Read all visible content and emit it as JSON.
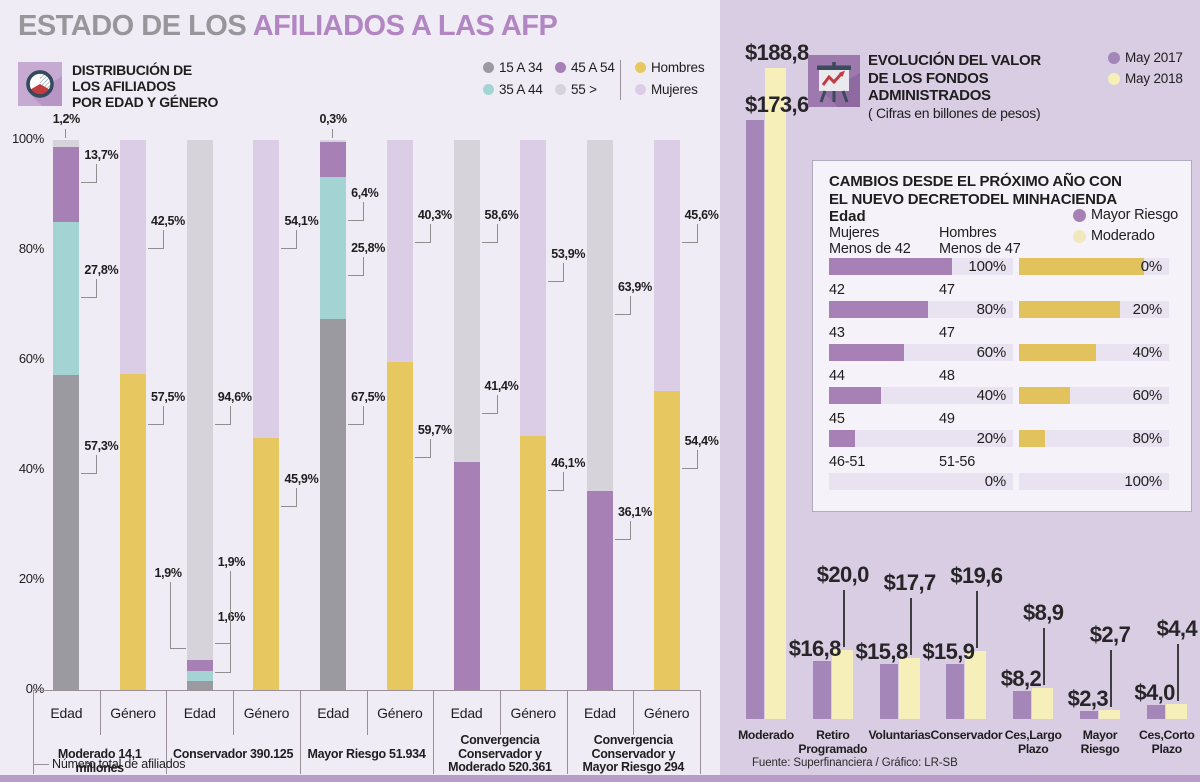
{
  "title": {
    "prefix": "ESTADO DE LOS ",
    "highlight": "AFILIADOS A LAS AFP"
  },
  "left_panel": {
    "header_lines": [
      "DISTRIBUCIÓN DE",
      "LOS AFILIADOS",
      "POR EDAD Y GÉNERO"
    ],
    "legend": {
      "age": [
        {
          "label": "15 A 34",
          "color": "#9b9aa0"
        },
        {
          "label": "35 A 44",
          "color": "#a3d4d3"
        },
        {
          "label": "45 A 54",
          "color": "#a780b5"
        },
        {
          "label": "55 >",
          "color": "#d7d3db"
        }
      ],
      "gender": [
        {
          "label": "Hombres",
          "color": "#e7c75f"
        },
        {
          "label": "Mujeres",
          "color": "#dccde7"
        }
      ]
    },
    "y_axis": [
      "100%",
      "80%",
      "60%",
      "40%",
      "20%",
      "0%"
    ],
    "col_labels": [
      "Edad",
      "Género"
    ],
    "x_note": "Número total de afiliados"
  },
  "right_panel": {
    "header_lines": [
      "EVOLUCIÓN DEL VALOR",
      "DE LOS FONDOS",
      "ADMINISTRADOS"
    ],
    "subtitle": "( Cifras en billones de pesos)",
    "legend": [
      {
        "label": "May 2017",
        "color": "#a586b9"
      },
      {
        "label": "May 2018",
        "color": "#f6efba"
      }
    ],
    "source": "Fuente: Superfinanciera / Gráfico: LR-SB",
    "inset": {
      "title_lines": [
        "CAMBIOS DESDE EL PRÓXIMO AÑO CON",
        "EL NUEVO DECRETODEL MINHACIENDA"
      ],
      "age_label": "Edad",
      "col_headers": [
        {
          "line1": "Mujeres",
          "line2": "Menos de 42"
        },
        {
          "line1": "Hombres",
          "line2": "Menos de 47"
        }
      ],
      "legend": [
        {
          "label": "Mayor Riesgo",
          "color": "#a780b5"
        },
        {
          "label": "Moderado",
          "color": "#f1e9bd"
        }
      ]
    }
  },
  "chart_data": [
    {
      "type": "bar",
      "subtype": "stacked-100",
      "title": "Distribución de los afiliados por edad y género",
      "unit": "%",
      "ylim": [
        0,
        100
      ],
      "colors": {
        "15 A 34": "#9b9aa0",
        "35 A 44": "#a3d4d3",
        "45 A 54": "#a780b5",
        "55 >": "#d7d3db",
        "Hombres": "#e7c75f",
        "Mujeres": "#dccde7"
      },
      "groups": [
        {
          "name": "Moderado 14,1 millones",
          "name_lines": [
            "Moderado 14,1 millones"
          ],
          "bars": [
            {
              "label": "Edad",
              "segments": [
                {
                  "cat": "15 A 34",
                  "value": 57.3,
                  "text": "57,3%",
                  "side": "right",
                  "label_y": 44
                },
                {
                  "cat": "35 A 44",
                  "value": 27.8,
                  "text": "27,8%",
                  "side": "right",
                  "label_y": 76
                },
                {
                  "cat": "45 A 54",
                  "value": 13.7,
                  "text": "13,7%",
                  "side": "right",
                  "label_y": 97
                },
                {
                  "cat": "55 >",
                  "value": 1.2,
                  "text": "1,2%",
                  "side": "top"
                }
              ]
            },
            {
              "label": "Género",
              "segments": [
                {
                  "cat": "Hombres",
                  "value": 57.5,
                  "text": "57,5%",
                  "side": "right",
                  "label_y": 53
                },
                {
                  "cat": "Mujeres",
                  "value": 42.5,
                  "text": "42,5%",
                  "side": "right",
                  "label_y": 85
                }
              ]
            }
          ]
        },
        {
          "name": "Conservador 390.125",
          "name_lines": [
            "Conservador 390.125"
          ],
          "bars": [
            {
              "label": "Edad",
              "segments": [
                {
                  "cat": "15 A 34",
                  "value": 1.6,
                  "text": "1,6%",
                  "side": "right",
                  "label_y": 13,
                  "elbow": 46
                },
                {
                  "cat": "35 A 44",
                  "value": 1.9,
                  "text": "1,9%",
                  "side": "left",
                  "label_y": 21,
                  "elbow": 66
                },
                {
                  "cat": "45 A 54",
                  "value": 1.9,
                  "text": "1,9%",
                  "side": "right",
                  "label_y": 23,
                  "elbow": 72
                },
                {
                  "cat": "55 >",
                  "value": 94.6,
                  "text": "94,6%",
                  "side": "right",
                  "label_y": 53
                }
              ]
            },
            {
              "label": "Género",
              "segments": [
                {
                  "cat": "Hombres",
                  "value": 45.9,
                  "text": "45,9%",
                  "side": "right",
                  "label_y": 38
                },
                {
                  "cat": "Mujeres",
                  "value": 54.1,
                  "text": "54,1%",
                  "side": "right",
                  "label_y": 85
                }
              ]
            }
          ]
        },
        {
          "name": "Mayor Riesgo 51.934",
          "name_lines": [
            "Mayor Riesgo 51.934"
          ],
          "bars": [
            {
              "label": "Edad",
              "segments": [
                {
                  "cat": "15 A 34",
                  "value": 67.5,
                  "text": "67,5%",
                  "side": "right",
                  "label_y": 53
                },
                {
                  "cat": "35 A 44",
                  "value": 25.8,
                  "text": "25,8%",
                  "side": "right",
                  "label_y": 80
                },
                {
                  "cat": "45 A 54",
                  "value": 6.4,
                  "text": "6,4%",
                  "side": "right",
                  "label_y": 90
                },
                {
                  "cat": "55 >",
                  "value": 0.3,
                  "text": "0,3%",
                  "side": "top"
                }
              ]
            },
            {
              "label": "Género",
              "segments": [
                {
                  "cat": "Hombres",
                  "value": 59.7,
                  "text": "59,7%",
                  "side": "right",
                  "label_y": 47
                },
                {
                  "cat": "Mujeres",
                  "value": 40.3,
                  "text": "40,3%",
                  "side": "right",
                  "label_y": 86
                }
              ]
            }
          ]
        },
        {
          "name": "Convergencia Conservador y Moderado 520.361",
          "name_lines": [
            "Convergencia",
            "Conservador y",
            "Moderado 520.361"
          ],
          "bars": [
            {
              "label": "Edad",
              "segments": [
                {
                  "cat": "45 A 54",
                  "value": 41.4,
                  "text": "41,4%",
                  "side": "right",
                  "label_y": 55
                },
                {
                  "cat": "55 >",
                  "value": 58.6,
                  "text": "58,6%",
                  "side": "right",
                  "label_y": 86
                }
              ]
            },
            {
              "label": "Género",
              "segments": [
                {
                  "cat": "Hombres",
                  "value": 46.1,
                  "text": "46,1%",
                  "side": "right",
                  "label_y": 41
                },
                {
                  "cat": "Mujeres",
                  "value": 53.9,
                  "text": "53,9%",
                  "side": "right",
                  "label_y": 79
                }
              ]
            }
          ]
        },
        {
          "name": "Convergencia Conservador y Mayor Riesgo 294",
          "name_lines": [
            "Convergencia",
            "Conservador y",
            "Mayor Riesgo 294"
          ],
          "bars": [
            {
              "label": "Edad",
              "segments": [
                {
                  "cat": "45 A 54",
                  "value": 36.1,
                  "text": "36,1%",
                  "side": "right",
                  "label_y": 32
                },
                {
                  "cat": "55 >",
                  "value": 63.9,
                  "text": "63,9%",
                  "side": "right",
                  "label_y": 73
                }
              ]
            },
            {
              "label": "Género",
              "segments": [
                {
                  "cat": "Hombres",
                  "value": 54.4,
                  "text": "54,4%",
                  "side": "right",
                  "label_y": 45
                },
                {
                  "cat": "Mujeres",
                  "value": 45.6,
                  "text": "45,6%",
                  "side": "right",
                  "label_y": 86
                }
              ]
            }
          ]
        }
      ]
    },
    {
      "type": "bar",
      "subtype": "grouped",
      "title": "Evolución del valor de los fondos administrados",
      "unit": "billones de pesos",
      "categories": [
        "Moderado",
        "Retiro Programado",
        "Voluntarias",
        "Conservador",
        "Ces,Largo Plazo",
        "Mayor Riesgo",
        "Ces,Corto Plazo"
      ],
      "categories_lines": [
        [
          "Moderado"
        ],
        [
          "Retiro",
          "Programado"
        ],
        [
          "Voluntarias"
        ],
        [
          "Conservador"
        ],
        [
          "Ces,Largo",
          "Plazo"
        ],
        [
          "Mayor",
          "Riesgo"
        ],
        [
          "Ces,Corto",
          "Plazo"
        ]
      ],
      "series": [
        {
          "name": "May 2017",
          "color": "#a586b9",
          "values": [
            173.6,
            16.8,
            15.8,
            15.9,
            8.2,
            2.3,
            4.0
          ],
          "labels": [
            "$173,6",
            "$16,8",
            "$15,8",
            "$15,9",
            "$8,2",
            "$2,3",
            "$4,0"
          ]
        },
        {
          "name": "May 2018",
          "color": "#f6efba",
          "values": [
            188.8,
            20.0,
            17.7,
            19.6,
            8.9,
            2.7,
            4.4
          ],
          "labels": [
            "$188,8",
            "$20,0",
            "$17,7",
            "$19,6",
            "$8,9",
            "$2,7",
            "$4,4"
          ]
        }
      ]
    },
    {
      "type": "bar",
      "subtype": "paired-horizontal",
      "title": "Cambios desde el próximo año con el nuevo decreto del Minhacienda",
      "bar_colors": {
        "mayor_riesgo": "#a780b5",
        "moderado": "#e2c25d",
        "track": "#e9e2f0"
      },
      "rows": [
        {
          "mujeres": "Menos de 42",
          "hombres": "Menos de 47",
          "mayor_riesgo": "100%",
          "moderado": "0%",
          "mr_fill": 67,
          "mod_fill": 83
        },
        {
          "mujeres": "42",
          "hombres": "47",
          "mayor_riesgo": "80%",
          "moderado": "20%",
          "mr_fill": 54,
          "mod_fill": 67
        },
        {
          "mujeres": "43",
          "hombres": "47",
          "mayor_riesgo": "60%",
          "moderado": "40%",
          "mr_fill": 41,
          "mod_fill": 51
        },
        {
          "mujeres": "44",
          "hombres": "48",
          "mayor_riesgo": "40%",
          "moderado": "60%",
          "mr_fill": 28,
          "mod_fill": 34
        },
        {
          "mujeres": "45",
          "hombres": "49",
          "mayor_riesgo": "20%",
          "moderado": "80%",
          "mr_fill": 14,
          "mod_fill": 17
        },
        {
          "mujeres": "46-51",
          "hombres": "51-56",
          "mayor_riesgo": "0%",
          "moderado": "100%",
          "mr_fill": 0,
          "mod_fill": 0
        }
      ]
    }
  ]
}
